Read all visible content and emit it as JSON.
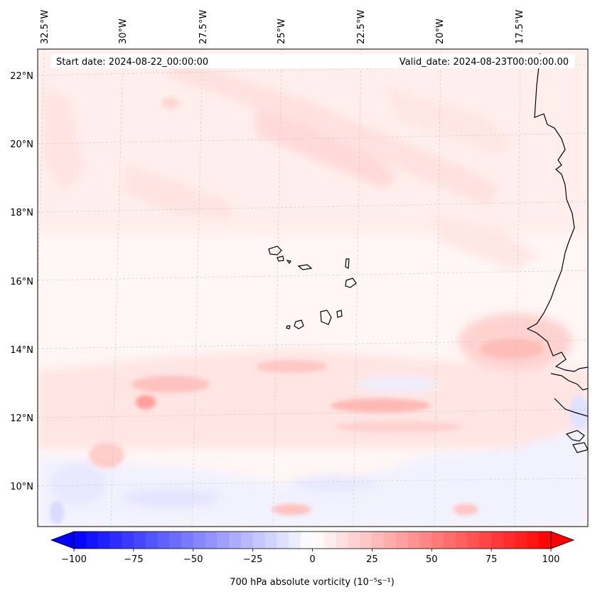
{
  "header": {
    "start_label": "Start date: 2024-08-22_00:00:00",
    "valid_label": "Valid_date: 2024-08-23T00:00:00.00"
  },
  "map": {
    "region": "Eastern tropical Atlantic, Cape Verde Islands and West African coast",
    "lon_labels": [
      "32.5°W",
      "30°W",
      "27.5°W",
      "25°W",
      "22.5°W",
      "20°W",
      "17.5°W"
    ],
    "lat_labels": [
      "22°N",
      "20°N",
      "18°N",
      "16°N",
      "14°N",
      "12°N",
      "10°N"
    ],
    "gridlines": "dashed, light grey",
    "field": "700 hPa absolute vorticity",
    "features": [
      {
        "name": "coastline-africa"
      },
      {
        "name": "cape-verde-islands"
      }
    ]
  },
  "colorbar": {
    "ticks": [
      "−100",
      "−75",
      "−50",
      "−25",
      "0",
      "25",
      "50",
      "75",
      "100"
    ],
    "label": "700 hPa absolute vorticity (10⁻⁵s⁻¹)",
    "range": [
      -100,
      100
    ],
    "levels": 40,
    "cmap": "bwr",
    "low_color": "#0000ff",
    "mid_color": "#ffffff",
    "high_color": "#ff0000",
    "extend": "both"
  }
}
